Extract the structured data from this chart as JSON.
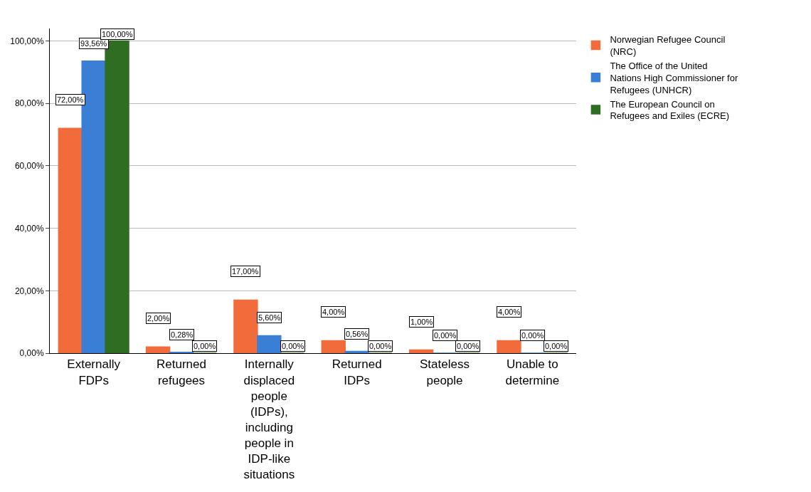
{
  "chart_data": {
    "type": "bar",
    "categories": [
      "Externally FDPs",
      "Returned refugees",
      "Internally displaced people (IDPs), including people in IDP-like situations",
      "Returned IDPs",
      "Stateless people",
      "Unable to determine"
    ],
    "series": [
      {
        "name": "Norwegian Refugee Council (NRC)",
        "color": "#f26b3a",
        "values": [
          72,
          2,
          17,
          4,
          1,
          4
        ],
        "value_labels": [
          "72,00%",
          "2,00%",
          "17,00%",
          "4,00%",
          "1,00%",
          "4,00%"
        ]
      },
      {
        "name": "The Office of the United Nations High Commissioner for Refugees (UNHCR)",
        "color": "#3a7fd5",
        "values": [
          93.56,
          0.28,
          5.6,
          0.56,
          0,
          0
        ],
        "value_labels": [
          "93,56%",
          "0,28%",
          "5,60%",
          "0,56%",
          "0,00%",
          "0,00%"
        ]
      },
      {
        "name": "The European Council on Refugees and Exiles (ECRE)",
        "color": "#2f6e22",
        "values": [
          100,
          0,
          0,
          0,
          0,
          0
        ],
        "value_labels": [
          "100,00%",
          "0,00%",
          "0,00%",
          "0,00%",
          "0,00%",
          "0,00%"
        ]
      }
    ],
    "ylim": [
      0,
      104
    ],
    "yticks": [
      {
        "value": 0,
        "label": "0,00%"
      },
      {
        "value": 20,
        "label": "20,00%"
      },
      {
        "value": 40,
        "label": "40,00%"
      },
      {
        "value": 60,
        "label": "60,00%"
      },
      {
        "value": 80,
        "label": "80,00%"
      },
      {
        "value": 100,
        "label": "100,00%"
      }
    ],
    "grid": "y",
    "legend": "top right"
  }
}
